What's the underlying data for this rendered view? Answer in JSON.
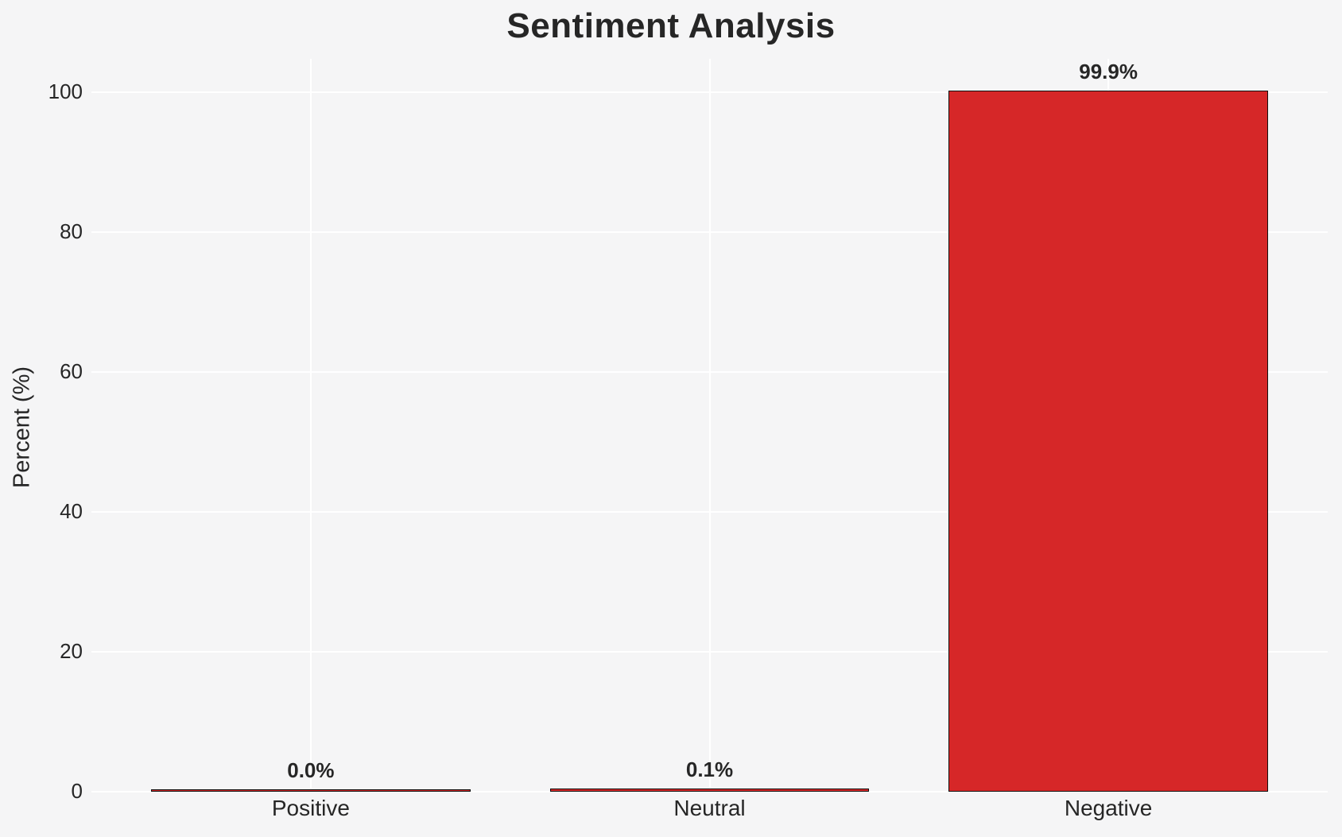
{
  "figure": {
    "background_color": "#f5f5f6",
    "grid_color": "#ffffff",
    "text_color": "#262626"
  },
  "chart_data": {
    "type": "bar",
    "title": "Sentiment Analysis",
    "xlabel": "",
    "ylabel": "Percent (%)",
    "categories": [
      "Positive",
      "Neutral",
      "Negative"
    ],
    "values": [
      0.0,
      0.1,
      99.9
    ],
    "bar_labels": [
      "0.0%",
      "0.1%",
      "99.9%"
    ],
    "yticks": [
      0,
      20,
      40,
      60,
      80,
      100
    ],
    "ylim": [
      0,
      104.8
    ],
    "grid": true,
    "legend": false,
    "bar_color": "#d62728",
    "bar_edge_color": "#101010"
  }
}
